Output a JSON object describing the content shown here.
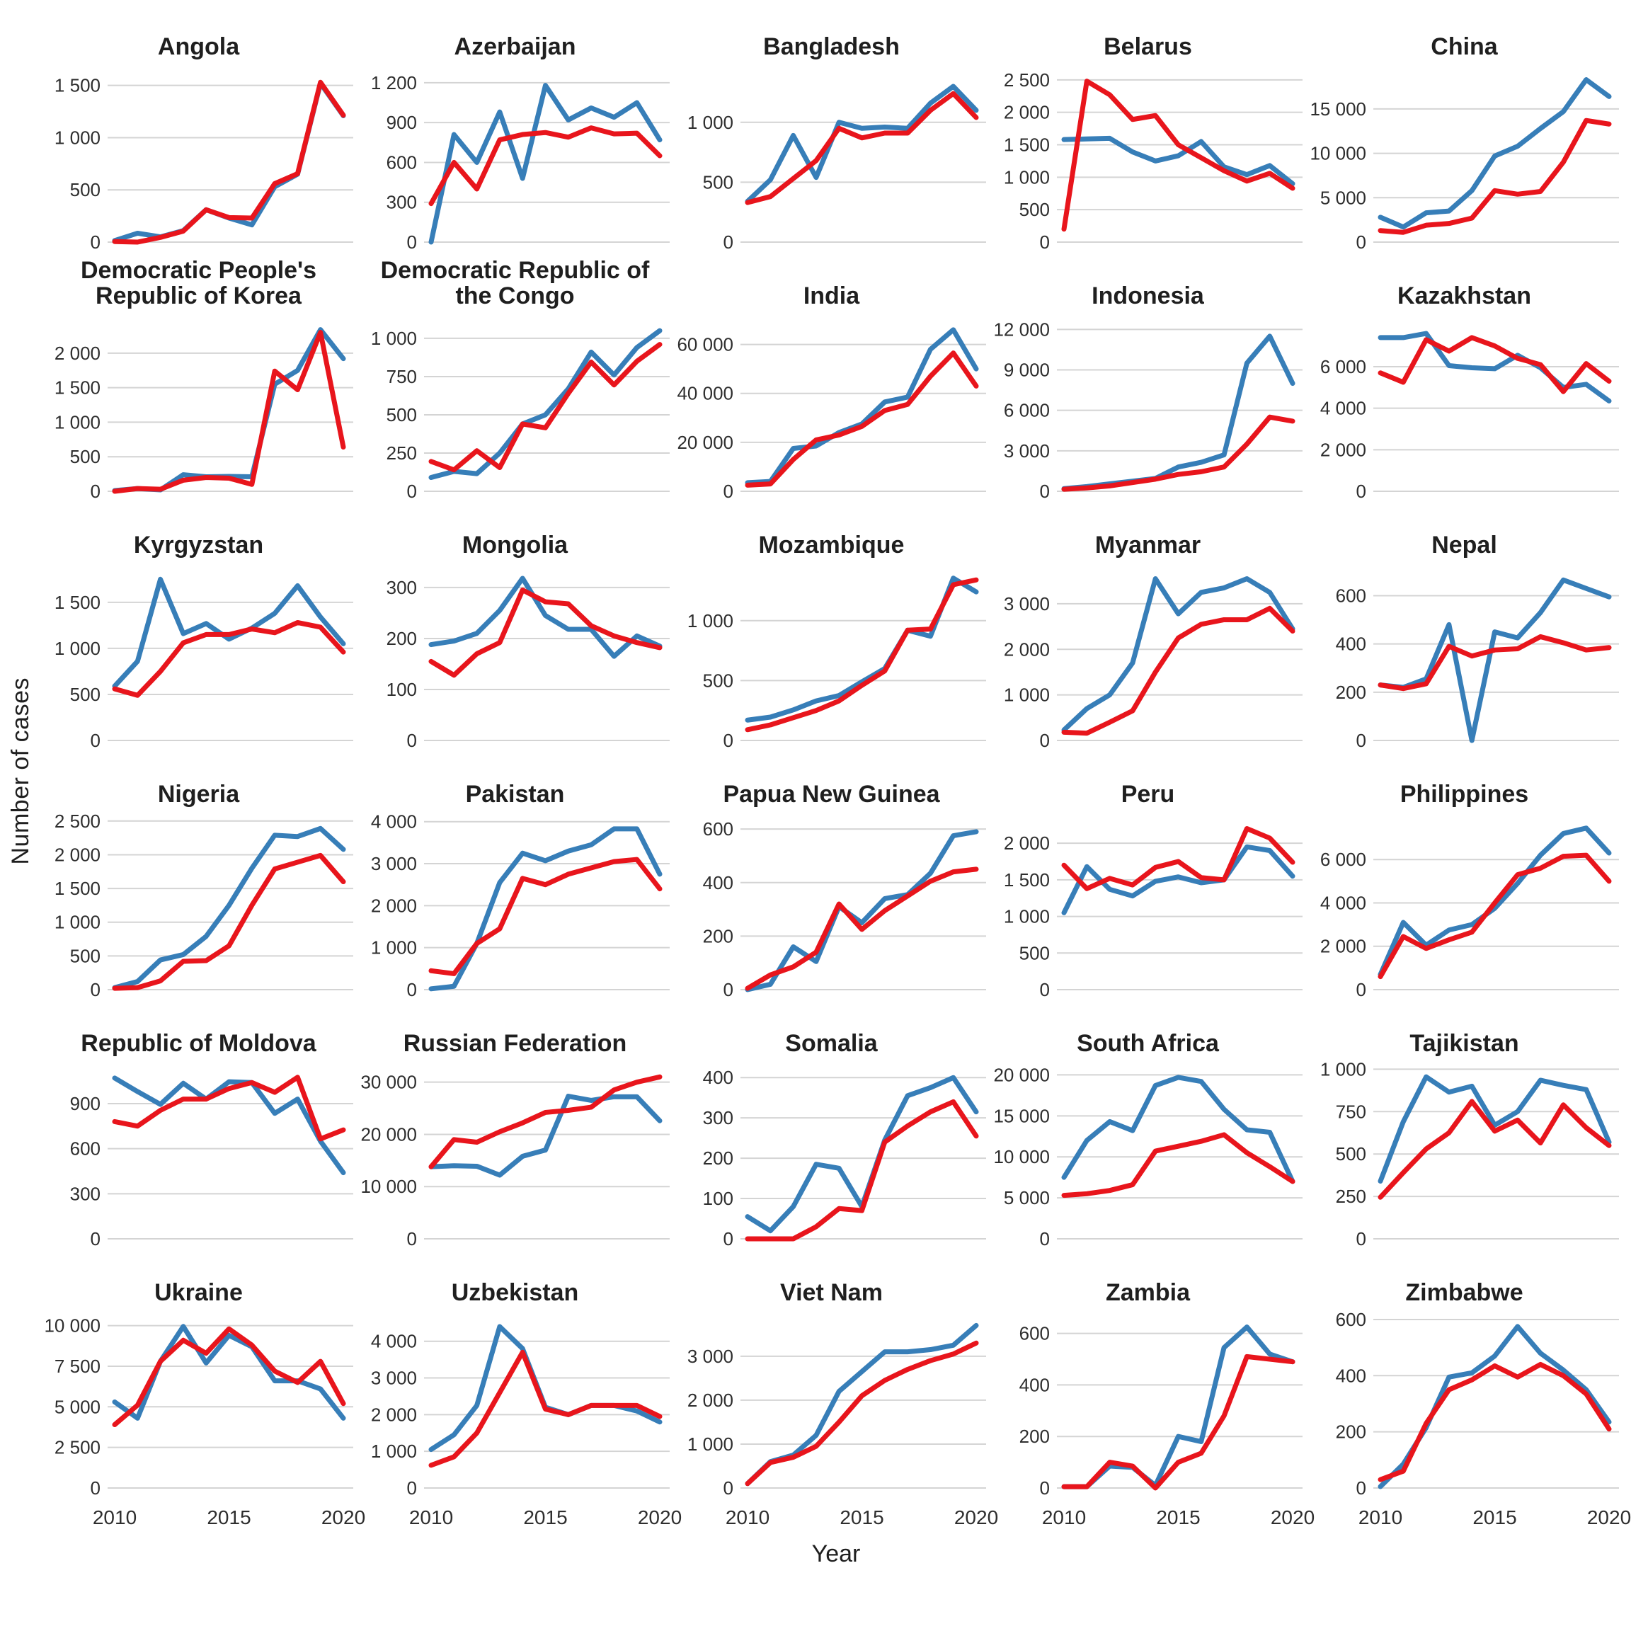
{
  "page": {
    "y_axis_label": "Number of cases",
    "x_axis_label": "Year"
  },
  "chart_data": {
    "type": "line",
    "x": [
      2010,
      2011,
      2012,
      2013,
      2014,
      2015,
      2016,
      2017,
      2018,
      2019,
      2020
    ],
    "x_tick_labels": [
      "2010",
      "2015",
      "2020"
    ],
    "x_ticks": [
      2010,
      2015,
      2020
    ],
    "grid": "horizontal-only",
    "legend_position": "none",
    "colors": {
      "blue_series": "#377EB8",
      "red_series": "#E8151C",
      "gridline": "#D4D4D4",
      "tick_text": "#2E2E2E",
      "title_text": "#1F1F1F"
    },
    "facets": [
      {
        "title": "Angola",
        "y_ticks": [
          0,
          500,
          1000,
          1500
        ],
        "ylim": [
          0,
          1640
        ],
        "blue": [
          15,
          85,
          50,
          110,
          310,
          230,
          165,
          530,
          650,
          1520,
          1210
        ],
        "red": [
          5,
          0,
          45,
          105,
          310,
          235,
          230,
          560,
          655,
          1530,
          1215
        ]
      },
      {
        "title": "Azerbaijan",
        "y_ticks": [
          0,
          300,
          600,
          900,
          1200
        ],
        "ylim": [
          0,
          1290
        ],
        "blue": [
          0,
          810,
          600,
          980,
          480,
          1180,
          920,
          1010,
          940,
          1050,
          770
        ],
        "red": [
          290,
          600,
          400,
          770,
          810,
          825,
          790,
          860,
          815,
          820,
          650
        ]
      },
      {
        "title": "Bangladesh",
        "y_ticks": [
          0,
          500,
          1000
        ],
        "ylim": [
          0,
          1430
        ],
        "blue": [
          340,
          520,
          890,
          540,
          1000,
          950,
          960,
          950,
          1160,
          1300,
          1100
        ],
        "red": [
          330,
          380,
          530,
          680,
          950,
          870,
          910,
          910,
          1100,
          1240,
          1040
        ]
      },
      {
        "title": "Belarus",
        "y_ticks": [
          0,
          500,
          1000,
          1500,
          2000,
          2500
        ],
        "ylim": [
          0,
          2640
        ],
        "blue": [
          1580,
          1590,
          1600,
          1390,
          1250,
          1330,
          1550,
          1160,
          1040,
          1180,
          900
        ],
        "red": [
          200,
          2480,
          2270,
          1890,
          1950,
          1500,
          1300,
          1100,
          940,
          1060,
          830
        ]
      },
      {
        "title": "China",
        "y_ticks": [
          0,
          5000,
          10000,
          15000
        ],
        "ylim": [
          0,
          19300
        ],
        "blue": [
          2800,
          1700,
          3300,
          3500,
          5800,
          9700,
          10800,
          12800,
          14700,
          18300,
          16400
        ],
        "red": [
          1300,
          1100,
          1900,
          2100,
          2700,
          5800,
          5400,
          5700,
          9000,
          13700,
          13300
        ]
      },
      {
        "title": "Democratic People's Republic of Korea",
        "y_ticks": [
          0,
          500,
          1000,
          1500,
          2000
        ],
        "ylim": [
          0,
          2480
        ],
        "blue": [
          10,
          40,
          20,
          240,
          210,
          215,
          210,
          1550,
          1750,
          2340,
          1920
        ],
        "red": [
          0,
          40,
          30,
          160,
          200,
          190,
          100,
          1740,
          1470,
          2300,
          640
        ]
      },
      {
        "title": "Democratic Republic of the Congo",
        "y_ticks": [
          0,
          250,
          500,
          750,
          1000
        ],
        "ylim": [
          0,
          1120
        ],
        "blue": [
          90,
          130,
          115,
          250,
          440,
          500,
          670,
          910,
          760,
          940,
          1050
        ],
        "red": [
          195,
          140,
          265,
          155,
          440,
          415,
          640,
          845,
          695,
          850,
          960
        ]
      },
      {
        "title": "India",
        "y_ticks": [
          0,
          20000,
          40000,
          60000
        ],
        "ylim": [
          0,
          70000
        ],
        "blue": [
          3500,
          4000,
          17500,
          18500,
          24000,
          27500,
          36500,
          38500,
          58000,
          66000,
          50000
        ],
        "red": [
          2500,
          3000,
          13000,
          21000,
          23000,
          26500,
          33000,
          35500,
          47000,
          56500,
          43000
        ]
      },
      {
        "title": "Indonesia",
        "y_ticks": [
          0,
          3000,
          6000,
          9000,
          12000
        ],
        "ylim": [
          0,
          12700
        ],
        "blue": [
          200,
          350,
          550,
          750,
          950,
          1800,
          2150,
          2700,
          9500,
          11500,
          8000
        ],
        "red": [
          150,
          250,
          400,
          650,
          900,
          1250,
          1450,
          1800,
          3500,
          5500,
          5200
        ]
      },
      {
        "title": "Kazakhstan",
        "y_ticks": [
          0,
          2000,
          4000,
          6000
        ],
        "ylim": [
          0,
          8250
        ],
        "blue": [
          7400,
          7400,
          7600,
          6050,
          5950,
          5900,
          6550,
          5950,
          5000,
          5150,
          4350
        ],
        "red": [
          5700,
          5250,
          7300,
          6750,
          7400,
          7000,
          6400,
          6100,
          4800,
          6150,
          5300
        ]
      },
      {
        "title": "Kyrgyzstan",
        "y_ticks": [
          0,
          500,
          1000,
          1500
        ],
        "ylim": [
          0,
          1860
        ],
        "blue": [
          590,
          860,
          1750,
          1160,
          1270,
          1100,
          1220,
          1380,
          1680,
          1340,
          1050
        ],
        "red": [
          560,
          490,
          750,
          1060,
          1150,
          1150,
          1210,
          1170,
          1280,
          1230,
          960
        ]
      },
      {
        "title": "Mongolia",
        "y_ticks": [
          0,
          100,
          200,
          300
        ],
        "ylim": [
          0,
          336
        ],
        "blue": [
          188,
          195,
          210,
          255,
          318,
          245,
          218,
          218,
          165,
          205,
          185
        ],
        "red": [
          155,
          128,
          170,
          192,
          295,
          272,
          268,
          225,
          205,
          192,
          182
        ]
      },
      {
        "title": "Mozambique",
        "y_ticks": [
          0,
          500,
          1000
        ],
        "ylim": [
          0,
          1430
        ],
        "blue": [
          170,
          195,
          255,
          330,
          375,
          490,
          600,
          920,
          870,
          1355,
          1240
        ],
        "red": [
          90,
          130,
          190,
          250,
          330,
          460,
          580,
          920,
          930,
          1300,
          1340
        ]
      },
      {
        "title": "Myanmar",
        "y_ticks": [
          0,
          1000,
          2000,
          3000
        ],
        "ylim": [
          0,
          3760
        ],
        "blue": [
          230,
          700,
          1000,
          1700,
          3550,
          2780,
          3250,
          3350,
          3550,
          3250,
          2450
        ],
        "red": [
          180,
          160,
          400,
          650,
          1500,
          2250,
          2550,
          2650,
          2650,
          2900,
          2400
        ]
      },
      {
        "title": "Nepal",
        "y_ticks": [
          0,
          200,
          400,
          600
        ],
        "ylim": [
          0,
          710
        ],
        "blue": [
          230,
          220,
          255,
          480,
          0,
          450,
          425,
          530,
          665,
          630,
          595
        ],
        "red": [
          230,
          215,
          235,
          390,
          350,
          375,
          380,
          430,
          405,
          375,
          385
        ]
      },
      {
        "title": "Nigeria",
        "y_ticks": [
          0,
          500,
          1000,
          1500,
          2000,
          2500
        ],
        "ylim": [
          0,
          2540
        ],
        "blue": [
          30,
          120,
          440,
          520,
          790,
          1250,
          1800,
          2290,
          2270,
          2390,
          2080
        ],
        "red": [
          20,
          30,
          130,
          420,
          430,
          650,
          1250,
          1790,
          1890,
          1990,
          1600
        ]
      },
      {
        "title": "Pakistan",
        "y_ticks": [
          0,
          1000,
          2000,
          3000,
          4000
        ],
        "ylim": [
          0,
          4080
        ],
        "blue": [
          20,
          80,
          1100,
          2550,
          3250,
          3070,
          3300,
          3450,
          3830,
          3830,
          2750
        ],
        "red": [
          450,
          380,
          1100,
          1450,
          2650,
          2500,
          2750,
          2900,
          3050,
          3100,
          2400
        ]
      },
      {
        "title": "Papua New Guinea",
        "y_ticks": [
          0,
          200,
          400,
          600
        ],
        "ylim": [
          0,
          640
        ],
        "blue": [
          0,
          20,
          160,
          105,
          310,
          250,
          340,
          355,
          435,
          575,
          590
        ],
        "red": [
          5,
          55,
          85,
          140,
          320,
          225,
          295,
          350,
          405,
          440,
          450
        ]
      },
      {
        "title": "Peru",
        "y_ticks": [
          0,
          500,
          1000,
          1500,
          2000
        ],
        "ylim": [
          0,
          2340
        ],
        "blue": [
          1050,
          1680,
          1370,
          1280,
          1480,
          1540,
          1460,
          1500,
          1950,
          1900,
          1550
        ],
        "red": [
          1700,
          1380,
          1520,
          1430,
          1670,
          1750,
          1530,
          1500,
          2200,
          2070,
          1740
        ]
      },
      {
        "title": "Philippines",
        "y_ticks": [
          0,
          2000,
          4000,
          6000
        ],
        "ylim": [
          0,
          7900
        ],
        "blue": [
          700,
          3100,
          2050,
          2750,
          3000,
          3750,
          4900,
          6200,
          7200,
          7450,
          6300
        ],
        "red": [
          600,
          2450,
          1900,
          2300,
          2650,
          4000,
          5300,
          5600,
          6150,
          6200,
          5000
        ]
      },
      {
        "title": "Republic of Moldova",
        "y_ticks": [
          0,
          300,
          600,
          900
        ],
        "ylim": [
          0,
          1140
        ],
        "blue": [
          1070,
          980,
          895,
          1035,
          930,
          1045,
          1040,
          835,
          930,
          650,
          440
        ],
        "red": [
          780,
          750,
          855,
          930,
          930,
          1000,
          1040,
          975,
          1075,
          665,
          725
        ]
      },
      {
        "title": "Russian Federation",
        "y_ticks": [
          0,
          10000,
          20000,
          30000
        ],
        "ylim": [
          0,
          32800
        ],
        "blue": [
          13800,
          14000,
          13900,
          12200,
          15800,
          17000,
          27300,
          26500,
          27200,
          27200,
          22600
        ],
        "red": [
          13800,
          19000,
          18500,
          20500,
          22200,
          24200,
          24600,
          25200,
          28500,
          30000,
          31000
        ]
      },
      {
        "title": "Somalia",
        "y_ticks": [
          0,
          100,
          200,
          300,
          400
        ],
        "ylim": [
          0,
          425
        ],
        "blue": [
          55,
          20,
          80,
          185,
          175,
          80,
          245,
          355,
          375,
          400,
          315
        ],
        "red": [
          0,
          0,
          0,
          30,
          75,
          70,
          240,
          280,
          315,
          340,
          255
        ]
      },
      {
        "title": "South Africa",
        "y_ticks": [
          0,
          5000,
          10000,
          15000,
          20000
        ],
        "ylim": [
          0,
          20900
        ],
        "blue": [
          7500,
          12000,
          14300,
          13200,
          18700,
          19700,
          19200,
          15800,
          13300,
          13000,
          7000
        ],
        "red": [
          5300,
          5500,
          5900,
          6600,
          10700,
          11300,
          11900,
          12700,
          10500,
          8800,
          7000
        ]
      },
      {
        "title": "Tajikistan",
        "y_ticks": [
          0,
          250,
          500,
          750,
          1000
        ],
        "ylim": [
          0,
          1010
        ],
        "blue": [
          340,
          690,
          955,
          865,
          900,
          670,
          750,
          935,
          905,
          880,
          570
        ],
        "red": [
          245,
          390,
          530,
          625,
          810,
          635,
          700,
          565,
          790,
          655,
          550
        ]
      },
      {
        "title": "Ukraine",
        "y_ticks": [
          0,
          2500,
          5000,
          7500,
          10000
        ],
        "ylim": [
          0,
          10550
        ],
        "blue": [
          5300,
          4300,
          7800,
          9950,
          7700,
          9400,
          8700,
          6600,
          6600,
          6100,
          4300
        ],
        "red": [
          3900,
          5100,
          7800,
          9100,
          8300,
          9800,
          8800,
          7200,
          6500,
          7800,
          5200
        ]
      },
      {
        "title": "Uzbekistan",
        "y_ticks": [
          0,
          1000,
          2000,
          3000,
          4000
        ],
        "ylim": [
          0,
          4670
        ],
        "blue": [
          1050,
          1450,
          2250,
          4400,
          3800,
          2200,
          2000,
          2250,
          2250,
          2100,
          1800
        ],
        "red": [
          620,
          850,
          1500,
          2600,
          3700,
          2150,
          2000,
          2250,
          2250,
          2250,
          1950
        ]
      },
      {
        "title": "Viet Nam",
        "y_ticks": [
          0,
          1000,
          2000,
          3000
        ],
        "ylim": [
          0,
          3900
        ],
        "blue": [
          100,
          600,
          750,
          1200,
          2200,
          2650,
          3100,
          3100,
          3150,
          3250,
          3700
        ],
        "red": [
          100,
          580,
          700,
          950,
          1500,
          2100,
          2450,
          2700,
          2900,
          3050,
          3300
        ]
      },
      {
        "title": "Zambia",
        "y_ticks": [
          0,
          200,
          400,
          600
        ],
        "ylim": [
          0,
          665
        ],
        "blue": [
          5,
          5,
          85,
          80,
          10,
          200,
          180,
          545,
          625,
          520,
          490
        ],
        "red": [
          5,
          5,
          100,
          85,
          0,
          100,
          135,
          280,
          510,
          500,
          490
        ]
      },
      {
        "title": "Zimbabwe",
        "y_ticks": [
          0,
          200,
          400,
          600
        ],
        "ylim": [
          0,
          610
        ],
        "blue": [
          5,
          85,
          215,
          395,
          410,
          470,
          575,
          480,
          420,
          350,
          235
        ],
        "red": [
          30,
          60,
          230,
          350,
          385,
          435,
          395,
          440,
          400,
          335,
          210
        ]
      }
    ]
  }
}
